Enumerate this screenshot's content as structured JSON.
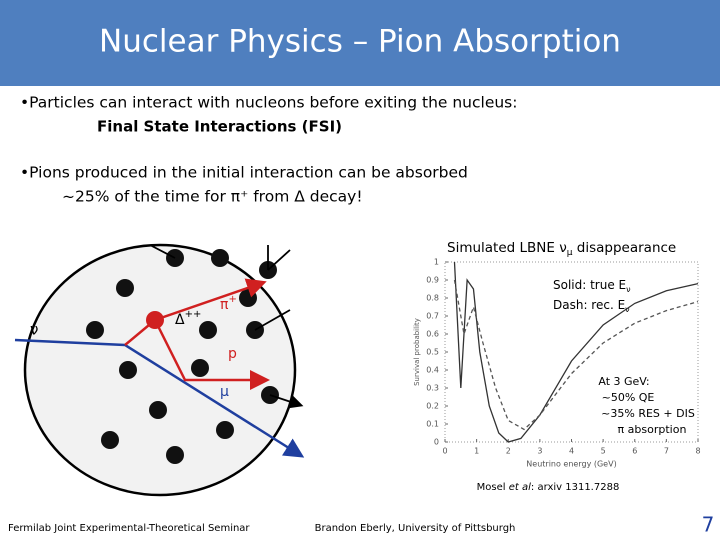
{
  "header": {
    "title": "Nuclear Physics – Pion Absorption"
  },
  "bullets": [
    {
      "text": "•Particles can interact with nucleons before exiting the nucleus:",
      "sub": "Final State Interactions (FSI)"
    },
    {
      "text": "•Pions produced in the initial interaction can be absorbed",
      "sub": "~25% of the time for π⁺ from Δ decay!"
    }
  ],
  "diagram": {
    "nu": "ν",
    "delta": "Δ",
    "delta_sup": "++",
    "pi": "π",
    "pi_sup": "+",
    "p": "p",
    "mu": "μ"
  },
  "plot": {
    "title": "Simulated LBNE ν",
    "title_sub": "μ",
    "title_rest": " disappearance",
    "legend": [
      {
        "text": "Solid:  true E",
        "sub": "ν"
      },
      {
        "text": "Dash:  rec. E",
        "sub": "ν"
      }
    ],
    "note": [
      "At 3 GeV:",
      "~50% QE",
      "~35% RES + DIS",
      "π absorption"
    ],
    "citation_pre": "Mosel ",
    "citation_em": "et al",
    "citation_post": ": arxiv 1311.7288",
    "x_label": "Neutrino energy (GeV)",
    "y_label": "Survival probability",
    "xlim": [
      0,
      8
    ],
    "ylim": [
      0,
      1
    ],
    "xticks": [
      0,
      1,
      2,
      3,
      4,
      5,
      6,
      7,
      8
    ],
    "yticks": [
      0,
      0.1,
      0.2,
      0.3,
      0.4,
      0.5,
      0.6,
      0.7,
      0.8,
      0.9,
      1
    ],
    "series": [
      {
        "style": "solid",
        "color": "#333333",
        "x": [
          0.3,
          0.5,
          0.7,
          0.9,
          1.1,
          1.4,
          1.7,
          2.0,
          2.4,
          3,
          4,
          5,
          6,
          7,
          8
        ],
        "values": [
          1,
          0.3,
          0.9,
          0.85,
          0.5,
          0.2,
          0.05,
          0,
          0.02,
          0.15,
          0.45,
          0.65,
          0.77,
          0.84,
          0.88
        ]
      },
      {
        "style": "dashed",
        "color": "#555555",
        "x": [
          0.3,
          0.6,
          0.9,
          1.2,
          1.6,
          2,
          2.5,
          3,
          4,
          5,
          6,
          7,
          8
        ],
        "values": [
          0.9,
          0.6,
          0.75,
          0.55,
          0.3,
          0.12,
          0.07,
          0.15,
          0.38,
          0.55,
          0.66,
          0.73,
          0.78
        ]
      }
    ]
  },
  "footer": {
    "left": "Fermilab Joint Experimental-Theoretical Seminar",
    "center": "Brandon Eberly, University of Pittsburgh",
    "page": "7"
  }
}
